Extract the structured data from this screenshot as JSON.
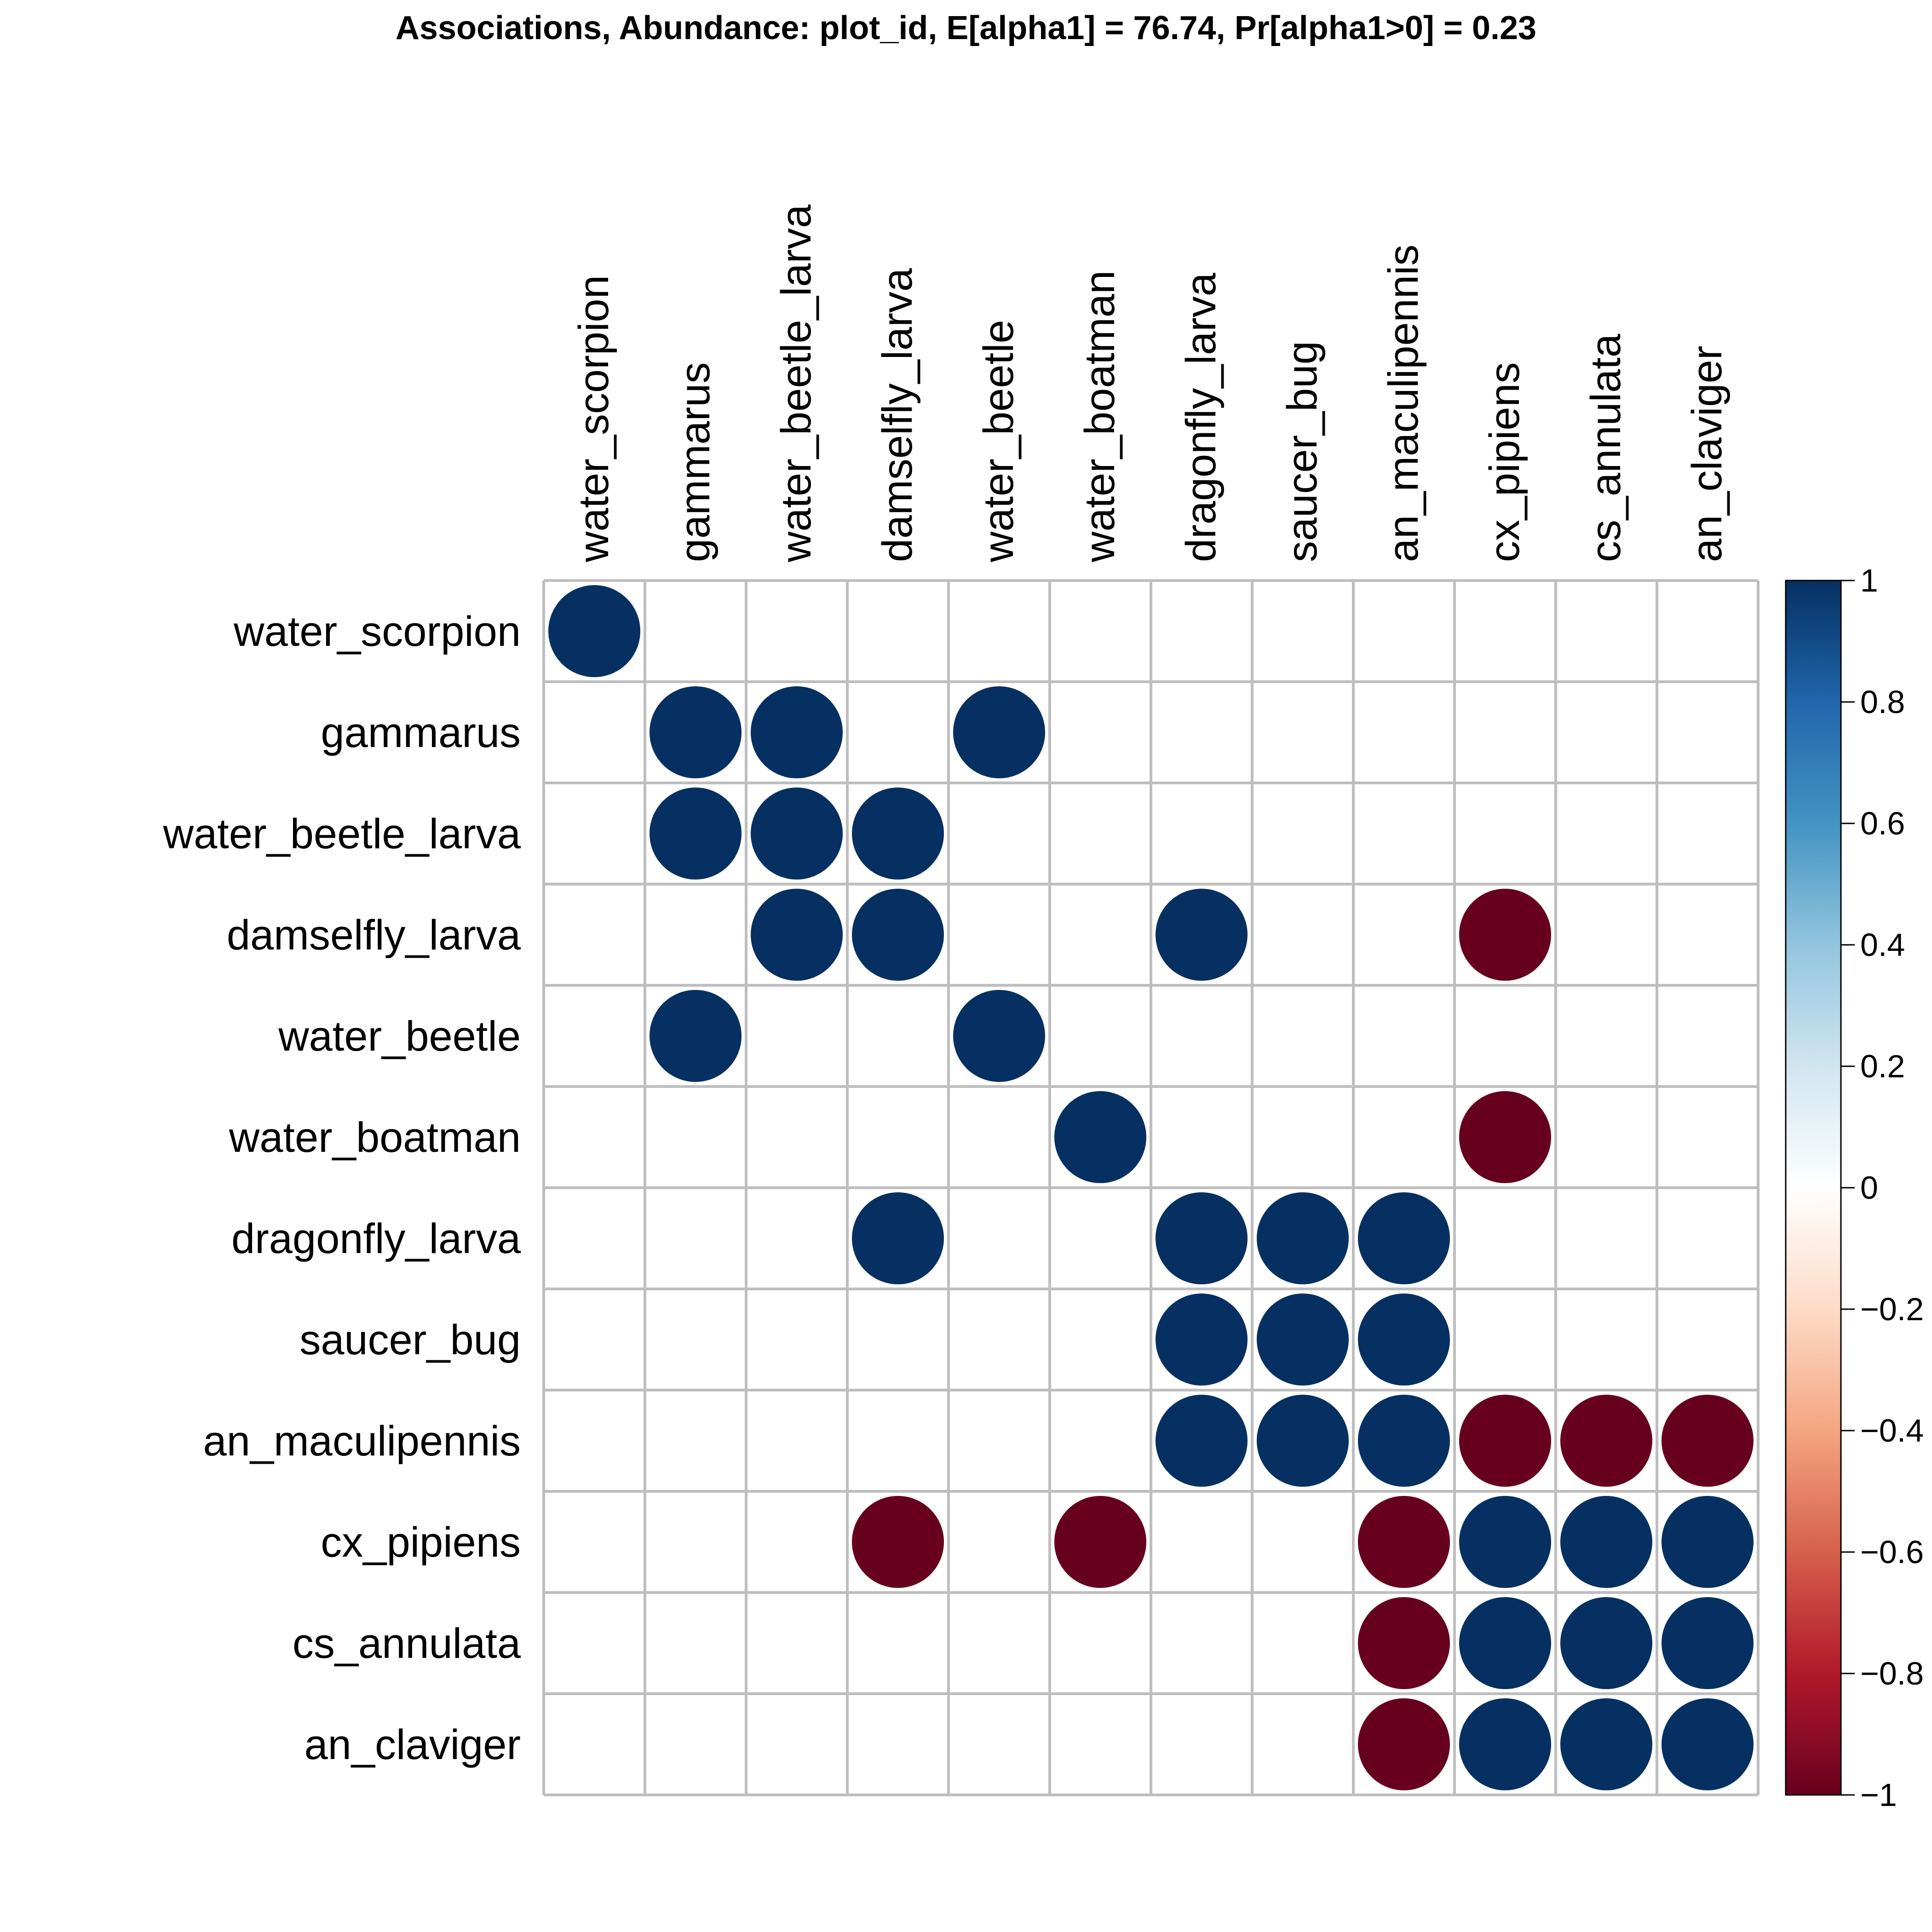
{
  "chart_data": {
    "type": "heatmap",
    "title": "Associations, Abundance: plot_id, E[alpha1] = 76.74, Pr[alpha1>0] = 0.23",
    "xlabel": "",
    "ylabel": "",
    "grid": true,
    "legend_position": "right",
    "row_labels": [
      "water_scorpion",
      "gammarus",
      "water_beetle_larva",
      "damselfly_larva",
      "water_beetle",
      "water_boatman",
      "dragonfly_larva",
      "saucer_bug",
      "an_maculipennis",
      "cx_pipiens",
      "cs_annulata",
      "an_claviger"
    ],
    "col_labels": [
      "water_scorpion",
      "gammarus",
      "water_beetle_larva",
      "damselfly_larva",
      "water_beetle",
      "water_boatman",
      "dragonfly_larva",
      "saucer_bug",
      "an_maculipennis",
      "cx_pipiens",
      "cs_annulata",
      "an_claviger"
    ],
    "values": [
      [
        1,
        0,
        0,
        0,
        0,
        0,
        0,
        0,
        0,
        0,
        0,
        0
      ],
      [
        0,
        1,
        1,
        0,
        1,
        0,
        0,
        0,
        0,
        0,
        0,
        0
      ],
      [
        0,
        1,
        1,
        1,
        0,
        0,
        0,
        0,
        0,
        0,
        0,
        0
      ],
      [
        0,
        0,
        1,
        1,
        0,
        0,
        1,
        0,
        0,
        -1,
        0,
        0
      ],
      [
        0,
        1,
        0,
        0,
        1,
        0,
        0,
        0,
        0,
        0,
        0,
        0
      ],
      [
        0,
        0,
        0,
        0,
        0,
        1,
        0,
        0,
        0,
        -1,
        0,
        0
      ],
      [
        0,
        0,
        0,
        1,
        0,
        0,
        1,
        1,
        1,
        0,
        0,
        0
      ],
      [
        0,
        0,
        0,
        0,
        0,
        0,
        1,
        1,
        1,
        0,
        0,
        0
      ],
      [
        0,
        0,
        0,
        0,
        0,
        0,
        1,
        1,
        1,
        -1,
        -1,
        -1
      ],
      [
        0,
        0,
        0,
        -1,
        0,
        -1,
        0,
        0,
        -1,
        1,
        1,
        1
      ],
      [
        0,
        0,
        0,
        0,
        0,
        0,
        0,
        0,
        -1,
        1,
        1,
        1
      ],
      [
        0,
        0,
        0,
        0,
        0,
        0,
        0,
        0,
        -1,
        1,
        1,
        1
      ]
    ],
    "value_range": [
      -1,
      1
    ],
    "colorbar": {
      "ticks": [
        "1",
        "0.8",
        "0.6",
        "0.4",
        "0.2",
        "0",
        "−0.2",
        "−0.4",
        "−0.6",
        "−0.8",
        "−1"
      ],
      "tick_values": [
        1,
        0.8,
        0.6,
        0.4,
        0.2,
        0,
        -0.2,
        -0.4,
        -0.6,
        -0.8,
        -1
      ],
      "colors": [
        "#053061",
        "#2166ac",
        "#4393c3",
        "#92c5de",
        "#d1e5f0",
        "#ffffff",
        "#fddbc7",
        "#f4a582",
        "#d6604d",
        "#b2182b",
        "#67001f"
      ]
    }
  }
}
